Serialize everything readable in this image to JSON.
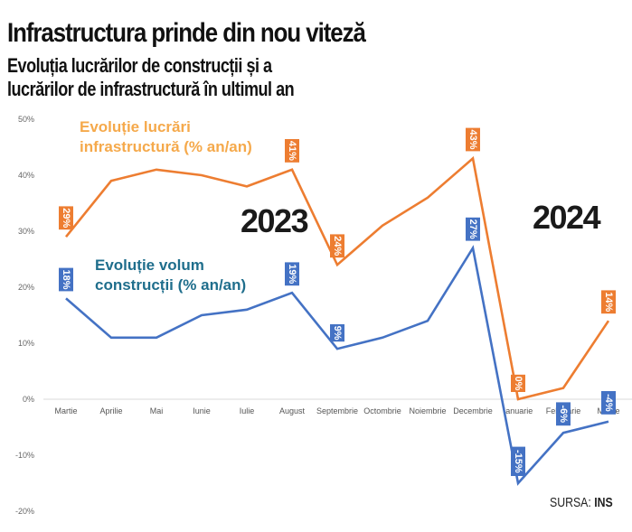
{
  "header": {
    "title": "Infrastructura prinde din nou viteză",
    "subtitle_line1": "Evoluția lucrărilor de construcții și a",
    "subtitle_line2": "lucrărilor de infrastructură în ultimul an"
  },
  "source": {
    "label": "SURSA:",
    "value": "INS"
  },
  "colors": {
    "infrastructure_line": "#ED7D31",
    "infrastructure_title": "#F5A94B",
    "construction_line": "#4472C4",
    "construction_title": "#1F6E8C",
    "year_text": "#1a1a1a"
  },
  "chart_data": {
    "type": "line",
    "title": "Evoluția lucrărilor de construcții și a lucrărilor de infrastructură în ultimul an",
    "xlabel": "",
    "ylabel": "",
    "categories": [
      "Martie",
      "Aprilie",
      "Mai",
      "Iunie",
      "Iulie",
      "August",
      "Septembrie",
      "Octombrie",
      "Noiembrie",
      "Decembrie",
      "Ianuarie",
      "Februarie",
      "Martie"
    ],
    "ylim": [
      -20,
      50
    ],
    "yticks": [
      50,
      40,
      30,
      20,
      10,
      0,
      -10,
      -20
    ],
    "ytick_labels": [
      "50%",
      "40%",
      "30%",
      "20%",
      "10%",
      "0%",
      "-10%",
      "-20%"
    ],
    "grid": false,
    "series": [
      {
        "name": "Evoluție lucrări infrastructură (% an/an)",
        "name_line1": "Evoluție lucrări",
        "name_line2": "infrastructură (% an/an)",
        "color": "#ED7D31",
        "values": [
          29,
          39,
          41,
          40,
          38,
          41,
          24,
          31,
          36,
          43,
          0,
          2,
          14
        ],
        "labels": {
          "0": "29%",
          "5": "41%",
          "6": "24%",
          "9": "43%",
          "10": "0%",
          "12": "14%"
        }
      },
      {
        "name": "Evoluție volum construcții (% an/an)",
        "name_line1": "Evoluție volum",
        "name_line2": "construcții (% an/an)",
        "color": "#4472C4",
        "values": [
          18,
          11,
          11,
          15,
          16,
          19,
          9,
          11,
          14,
          27,
          -15,
          -6,
          -4
        ],
        "labels": {
          "0": "18%",
          "5": "19%",
          "6": "9%",
          "9": "27%",
          "10": "-15%",
          "11": "-6%",
          "12": "-4%"
        }
      }
    ],
    "annotations": [
      "2023",
      "2024"
    ]
  }
}
